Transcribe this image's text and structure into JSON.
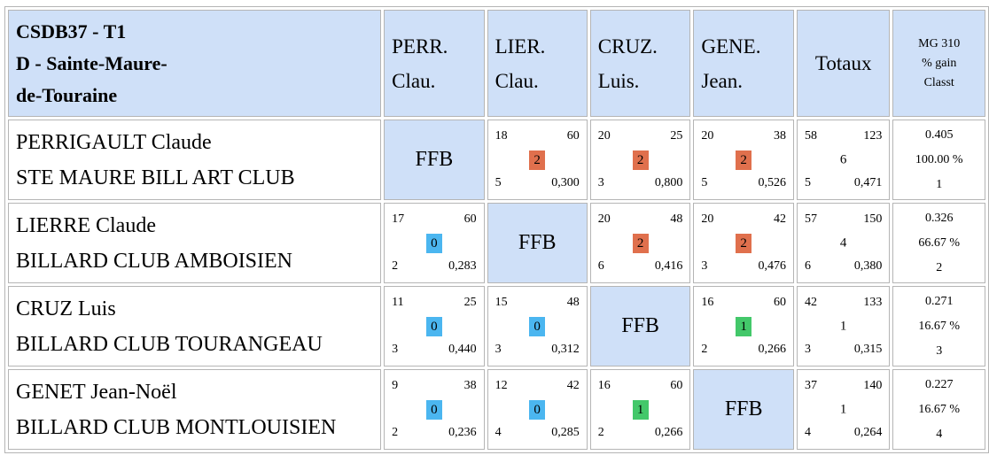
{
  "header": {
    "title_line1": "CSDB37 - T1",
    "title_line2": "D - Sainte-Maure-",
    "title_line3": "de-Touraine",
    "players": [
      {
        "line1": "PERR.",
        "line2": "Clau."
      },
      {
        "line1": "LIER.",
        "line2": "Clau."
      },
      {
        "line1": "CRUZ.",
        "line2": "Luis."
      },
      {
        "line1": "GENE.",
        "line2": "Jean."
      }
    ],
    "totals_label": "Totaux",
    "mg_line1": "MG 310",
    "mg_line2": "% gain",
    "mg_line3": "Classt"
  },
  "ffb_label": "FFB",
  "colors": {
    "header_bg": "#cfe0f8",
    "win": "#e0704d",
    "loss": "#4bb6f0",
    "draw": "#43c86a",
    "border": "#b5b5b5"
  },
  "rows": [
    {
      "name": "PERRIGAULT Claude",
      "club": "STE MAURE BILL ART CLUB",
      "cells": [
        null,
        {
          "a": "18",
          "b": "60",
          "pts": "2",
          "c": "5",
          "d": "0,300",
          "kind": "win"
        },
        {
          "a": "20",
          "b": "25",
          "pts": "2",
          "c": "3",
          "d": "0,800",
          "kind": "win"
        },
        {
          "a": "20",
          "b": "38",
          "pts": "2",
          "c": "5",
          "d": "0,526",
          "kind": "win"
        }
      ],
      "totals": {
        "a": "58",
        "b": "123",
        "pts": "6",
        "c": "5",
        "d": "0,471"
      },
      "mg": {
        "avg": "0.405",
        "pct": "100.00 %",
        "rank": "1"
      }
    },
    {
      "name": "LIERRE Claude",
      "club": "BILLARD CLUB AMBOISIEN",
      "cells": [
        {
          "a": "17",
          "b": "60",
          "pts": "0",
          "c": "2",
          "d": "0,283",
          "kind": "loss"
        },
        null,
        {
          "a": "20",
          "b": "48",
          "pts": "2",
          "c": "6",
          "d": "0,416",
          "kind": "win"
        },
        {
          "a": "20",
          "b": "42",
          "pts": "2",
          "c": "3",
          "d": "0,476",
          "kind": "win"
        }
      ],
      "totals": {
        "a": "57",
        "b": "150",
        "pts": "4",
        "c": "6",
        "d": "0,380"
      },
      "mg": {
        "avg": "0.326",
        "pct": "66.67 %",
        "rank": "2"
      }
    },
    {
      "name": "CRUZ Luis",
      "club": "BILLARD CLUB TOURANGEAU",
      "cells": [
        {
          "a": "11",
          "b": "25",
          "pts": "0",
          "c": "3",
          "d": "0,440",
          "kind": "loss"
        },
        {
          "a": "15",
          "b": "48",
          "pts": "0",
          "c": "3",
          "d": "0,312",
          "kind": "loss"
        },
        null,
        {
          "a": "16",
          "b": "60",
          "pts": "1",
          "c": "2",
          "d": "0,266",
          "kind": "draw"
        }
      ],
      "totals": {
        "a": "42",
        "b": "133",
        "pts": "1",
        "c": "3",
        "d": "0,315"
      },
      "mg": {
        "avg": "0.271",
        "pct": "16.67 %",
        "rank": "3"
      }
    },
    {
      "name": "GENET Jean-Noël",
      "club": "BILLARD CLUB MONTLOUISIEN",
      "cells": [
        {
          "a": "9",
          "b": "38",
          "pts": "0",
          "c": "2",
          "d": "0,236",
          "kind": "loss"
        },
        {
          "a": "12",
          "b": "42",
          "pts": "0",
          "c": "4",
          "d": "0,285",
          "kind": "loss"
        },
        {
          "a": "16",
          "b": "60",
          "pts": "1",
          "c": "2",
          "d": "0,266",
          "kind": "draw"
        },
        null
      ],
      "totals": {
        "a": "37",
        "b": "140",
        "pts": "1",
        "c": "4",
        "d": "0,264"
      },
      "mg": {
        "avg": "0.227",
        "pct": "16.67 %",
        "rank": "4"
      }
    }
  ]
}
